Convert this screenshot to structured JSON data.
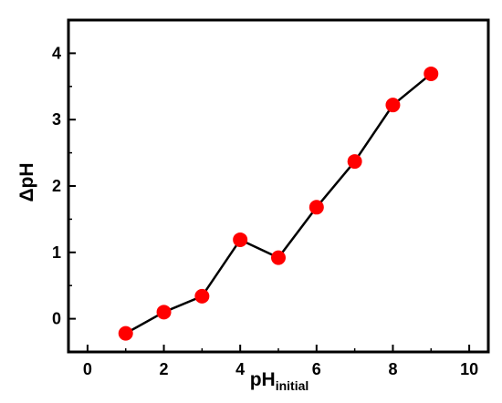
{
  "chart_data": {
    "type": "scatter",
    "title": "",
    "xlabel": {
      "main": "pH",
      "subscript": "initial"
    },
    "ylabel": "ΔpH",
    "xlim": [
      -0.5,
      10.5
    ],
    "ylim": [
      -0.5,
      4.5
    ],
    "xticks": [
      0,
      2,
      4,
      6,
      8,
      10
    ],
    "yticks": [
      0,
      1,
      2,
      3,
      4
    ],
    "grid": false,
    "legend": "none",
    "series": [
      {
        "x": [
          1,
          2,
          3,
          4,
          5,
          6,
          7,
          8,
          9
        ],
        "y": [
          -0.22,
          0.1,
          0.34,
          1.19,
          0.92,
          1.68,
          2.37,
          3.22,
          3.69
        ],
        "line_color": "#000000",
        "marker_color": "#ff0000",
        "connected": true
      }
    ]
  }
}
